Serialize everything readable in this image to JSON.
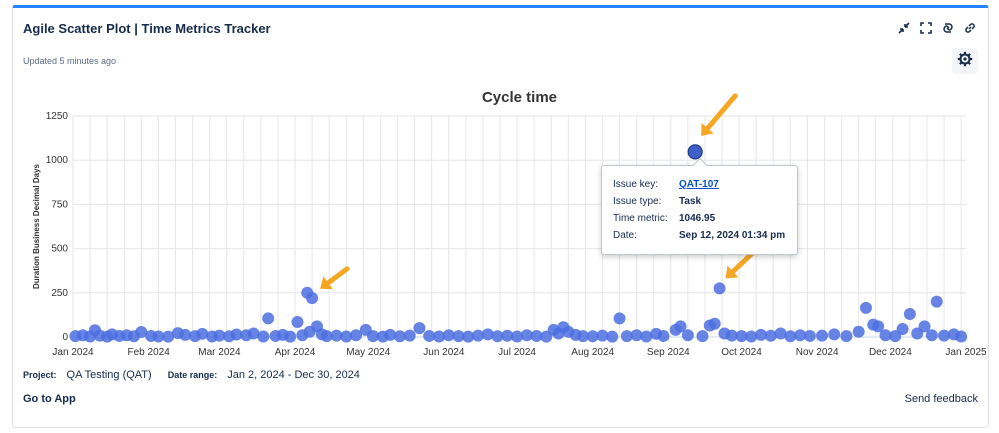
{
  "widget": {
    "title": "Agile Scatter Plot | Time Metrics Tracker",
    "updated": "Updated 5 minutes ago",
    "toolbar": [
      "minimize-icon",
      "fullscreen-icon",
      "refresh-icon",
      "link-icon"
    ],
    "settings_icon": "gear-icon"
  },
  "tooltip": {
    "rows": [
      {
        "label": "Issue key:",
        "value": "QAT-107"
      },
      {
        "label": "Issue type:",
        "value": "Task"
      },
      {
        "label": "Time metric:",
        "value": "1046.95"
      },
      {
        "label": "Date:",
        "value": "Sep 12, 2024 01:34 pm"
      }
    ]
  },
  "footer": {
    "project_label": "Project:",
    "project_value": "QA Testing (QAT)",
    "range_label": "Date range:",
    "range_value": "Jan 2, 2024 - Dec 30, 2024",
    "goto": "Go to App",
    "feedback": "Send feedback"
  },
  "colors": {
    "accent": "#2684ff",
    "point": "#4c6fe0",
    "highlight": "#3f5fc9",
    "arrow": "#f5a623"
  },
  "chart_data": {
    "type": "scatter",
    "title": "Cycle time",
    "ylabel": "Duration Business Decimal Days",
    "xlabel": "",
    "ylim": [
      0,
      1250
    ],
    "yticks": [
      "0",
      "250",
      "500",
      "750",
      "1000",
      "1250"
    ],
    "xticks": [
      "Jan 2024",
      "Feb 2024",
      "Mar 2024",
      "Apr 2024",
      "May 2024",
      "Jun 2024",
      "Jul 2024",
      "Aug 2024",
      "Sep 2024",
      "Oct 2024",
      "Nov 2024",
      "Dec 2024",
      "Jan 2025"
    ],
    "grid": true,
    "series": [
      {
        "points": [
          [
            "2024-01-02",
            5
          ],
          [
            "2024-01-05",
            10
          ],
          [
            "2024-01-08",
            3
          ],
          [
            "2024-01-10",
            38
          ],
          [
            "2024-01-12",
            8
          ],
          [
            "2024-01-15",
            2
          ],
          [
            "2024-01-17",
            15
          ],
          [
            "2024-01-20",
            6
          ],
          [
            "2024-01-23",
            10
          ],
          [
            "2024-01-26",
            4
          ],
          [
            "2024-01-29",
            28
          ],
          [
            "2024-02-02",
            6
          ],
          [
            "2024-02-05",
            3
          ],
          [
            "2024-02-09",
            2
          ],
          [
            "2024-02-13",
            22
          ],
          [
            "2024-02-16",
            12
          ],
          [
            "2024-02-20",
            5
          ],
          [
            "2024-02-23",
            18
          ],
          [
            "2024-02-27",
            3
          ],
          [
            "2024-03-01",
            8
          ],
          [
            "2024-03-05",
            4
          ],
          [
            "2024-03-08",
            14
          ],
          [
            "2024-03-12",
            10
          ],
          [
            "2024-03-15",
            20
          ],
          [
            "2024-03-19",
            3
          ],
          [
            "2024-03-21",
            105
          ],
          [
            "2024-03-24",
            6
          ],
          [
            "2024-03-27",
            12
          ],
          [
            "2024-03-30",
            2
          ],
          [
            "2024-04-02",
            85
          ],
          [
            "2024-04-04",
            10
          ],
          [
            "2024-04-06",
            250
          ],
          [
            "2024-04-07",
            30
          ],
          [
            "2024-04-08",
            220
          ],
          [
            "2024-04-10",
            60
          ],
          [
            "2024-04-12",
            15
          ],
          [
            "2024-04-14",
            5
          ],
          [
            "2024-04-18",
            8
          ],
          [
            "2024-04-22",
            3
          ],
          [
            "2024-04-26",
            10
          ],
          [
            "2024-04-30",
            40
          ],
          [
            "2024-05-03",
            5
          ],
          [
            "2024-05-07",
            2
          ],
          [
            "2024-05-10",
            12
          ],
          [
            "2024-05-14",
            4
          ],
          [
            "2024-05-18",
            8
          ],
          [
            "2024-05-22",
            50
          ],
          [
            "2024-05-26",
            6
          ],
          [
            "2024-05-30",
            3
          ],
          [
            "2024-06-03",
            10
          ],
          [
            "2024-06-07",
            5
          ],
          [
            "2024-06-11",
            2
          ],
          [
            "2024-06-15",
            8
          ],
          [
            "2024-06-19",
            15
          ],
          [
            "2024-06-23",
            4
          ],
          [
            "2024-06-27",
            7
          ],
          [
            "2024-07-01",
            3
          ],
          [
            "2024-07-05",
            10
          ],
          [
            "2024-07-09",
            6
          ],
          [
            "2024-07-13",
            2
          ],
          [
            "2024-07-16",
            40
          ],
          [
            "2024-07-18",
            20
          ],
          [
            "2024-07-20",
            55
          ],
          [
            "2024-07-22",
            30
          ],
          [
            "2024-07-25",
            12
          ],
          [
            "2024-07-28",
            5
          ],
          [
            "2024-08-01",
            4
          ],
          [
            "2024-08-05",
            8
          ],
          [
            "2024-08-09",
            2
          ],
          [
            "2024-08-12",
            105
          ],
          [
            "2024-08-15",
            5
          ],
          [
            "2024-08-19",
            10
          ],
          [
            "2024-08-23",
            3
          ],
          [
            "2024-08-27",
            18
          ],
          [
            "2024-08-30",
            6
          ],
          [
            "2024-09-04",
            40
          ],
          [
            "2024-09-06",
            60
          ],
          [
            "2024-09-09",
            10
          ],
          [
            "2024-09-12",
            1046.95
          ],
          [
            "2024-09-15",
            5
          ],
          [
            "2024-09-18",
            65
          ],
          [
            "2024-09-20",
            75
          ],
          [
            "2024-09-22",
            275
          ],
          [
            "2024-09-24",
            20
          ],
          [
            "2024-09-27",
            8
          ],
          [
            "2024-10-01",
            5
          ],
          [
            "2024-10-05",
            3
          ],
          [
            "2024-10-09",
            12
          ],
          [
            "2024-10-13",
            7
          ],
          [
            "2024-10-17",
            20
          ],
          [
            "2024-10-21",
            4
          ],
          [
            "2024-10-25",
            10
          ],
          [
            "2024-10-29",
            6
          ],
          [
            "2024-11-03",
            8
          ],
          [
            "2024-11-08",
            15
          ],
          [
            "2024-11-13",
            5
          ],
          [
            "2024-11-18",
            30
          ],
          [
            "2024-11-21",
            165
          ],
          [
            "2024-11-24",
            70
          ],
          [
            "2024-11-26",
            60
          ],
          [
            "2024-11-29",
            10
          ],
          [
            "2024-12-03",
            5
          ],
          [
            "2024-12-06",
            45
          ],
          [
            "2024-12-09",
            130
          ],
          [
            "2024-12-12",
            20
          ],
          [
            "2024-12-15",
            60
          ],
          [
            "2024-12-18",
            10
          ],
          [
            "2024-12-20",
            200
          ],
          [
            "2024-12-23",
            8
          ],
          [
            "2024-12-27",
            15
          ],
          [
            "2024-12-30",
            3
          ]
        ]
      }
    ],
    "highlight": [
      "2024-09-12",
      1046.95
    ]
  }
}
